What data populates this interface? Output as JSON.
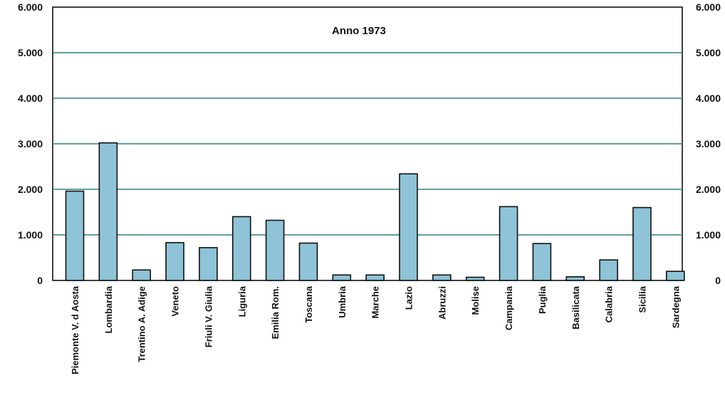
{
  "chart_data": {
    "type": "bar",
    "title": "Anno 1973",
    "categories": [
      "Piemonte V. d Aosta",
      "Lombardia",
      "Trentino A. Adige",
      "Veneto",
      "Friuli V. Giulia",
      "Liguria",
      "Emilia Rom.",
      "Toscana",
      "Umbria",
      "Marche",
      "Lazio",
      "Abruzzi",
      "Molise",
      "Campania",
      "Puglia",
      "Basilicata",
      "Calabria",
      "Sicilia",
      "Sardegna"
    ],
    "values": [
      1960,
      3020,
      230,
      830,
      720,
      1400,
      1320,
      820,
      120,
      120,
      2340,
      120,
      70,
      1620,
      810,
      80,
      450,
      1600,
      200
    ],
    "ylim": [
      0,
      6000
    ],
    "yticks": [
      0,
      1000,
      2000,
      3000,
      4000,
      5000,
      6000
    ],
    "ytick_labels": [
      "0",
      "1.000",
      "2.000",
      "3.000",
      "4.000",
      "5.000",
      "6.000"
    ],
    "grid": true,
    "bar_color": "#8ec3d8",
    "grid_color": "#2f7f7f"
  }
}
